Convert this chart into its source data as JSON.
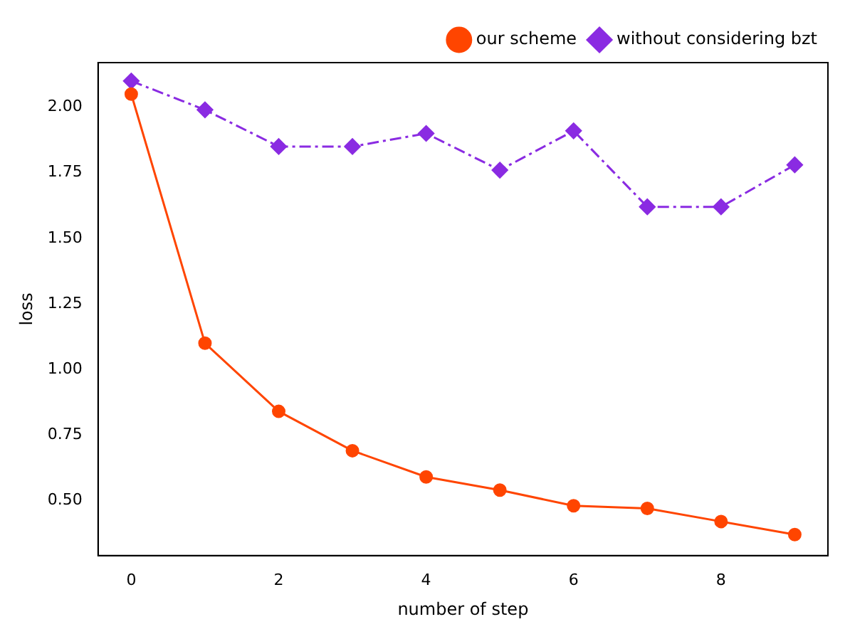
{
  "chart_data": {
    "type": "line",
    "xlabel": "number of step",
    "ylabel": "loss",
    "x": [
      0,
      1,
      2,
      3,
      4,
      5,
      6,
      7,
      8,
      9
    ],
    "series": [
      {
        "name": "our scheme",
        "color": "#ff4500",
        "marker": "circle",
        "line_style": "solid",
        "values": [
          2.05,
          1.1,
          0.84,
          0.69,
          0.59,
          0.54,
          0.48,
          0.47,
          0.42,
          0.37
        ]
      },
      {
        "name": "without considering bzt",
        "color": "#8a2be2",
        "marker": "diamond",
        "line_style": "dashed",
        "values": [
          2.1,
          1.99,
          1.85,
          1.85,
          1.9,
          1.76,
          1.91,
          1.62,
          1.62,
          1.78
        ]
      }
    ],
    "xlim": [
      -0.45,
      9.45
    ],
    "xticks": [
      0,
      2,
      4,
      6,
      8
    ],
    "ylim": [
      0.29,
      2.17
    ],
    "yticks": [
      {
        "value": 0.5,
        "label": "0.50"
      },
      {
        "value": 0.75,
        "label": "0.75"
      },
      {
        "value": 1.0,
        "label": "1.00"
      },
      {
        "value": 1.25,
        "label": "1.25"
      },
      {
        "value": 1.5,
        "label": "1.50"
      },
      {
        "value": 1.75,
        "label": "1.75"
      },
      {
        "value": 2.0,
        "label": "2.00"
      }
    ],
    "grid": false,
    "legend": "top right"
  }
}
